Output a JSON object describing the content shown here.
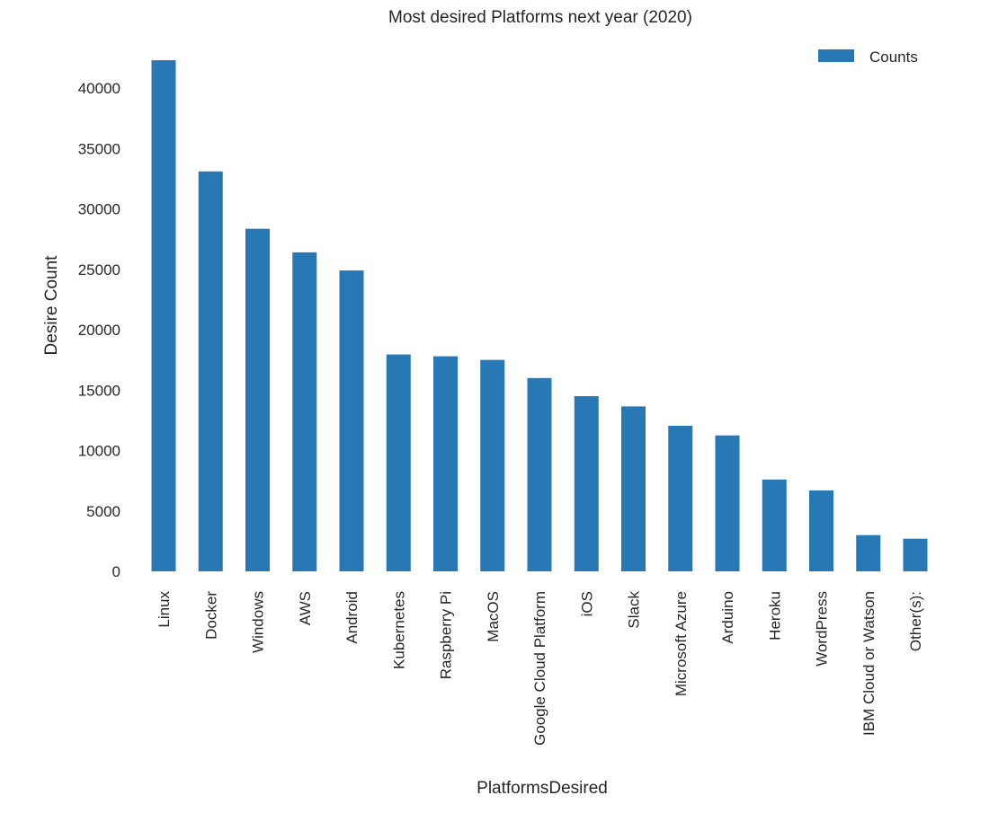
{
  "chart_data": {
    "type": "bar",
    "title": "Most desired Platforms next year (2020)",
    "xlabel": "PlatformsDesired",
    "ylabel": "Desire Count",
    "categories": [
      "Linux",
      "Docker",
      "Windows",
      "AWS",
      "Android",
      "Kubernetes",
      "Raspberry Pi",
      "MacOS",
      "Google Cloud Platform",
      "iOS",
      "Slack",
      "Microsoft Azure",
      "Arduino",
      "Heroku",
      "WordPress",
      "IBM Cloud or Watson",
      "Other(s):"
    ],
    "series": [
      {
        "name": "Counts",
        "values": [
          42300,
          33100,
          28350,
          26400,
          24900,
          17950,
          17800,
          17500,
          16000,
          14500,
          13650,
          12050,
          11250,
          7600,
          6700,
          3000,
          2700
        ]
      }
    ],
    "yticks": [
      0,
      5000,
      10000,
      15000,
      20000,
      25000,
      30000,
      35000,
      40000
    ],
    "ylim": [
      0,
      44000
    ],
    "grid": false,
    "legend_position": "top-right",
    "colors": {
      "bar": "#2878b5",
      "background": "#ffffff",
      "text": "#262626"
    }
  }
}
